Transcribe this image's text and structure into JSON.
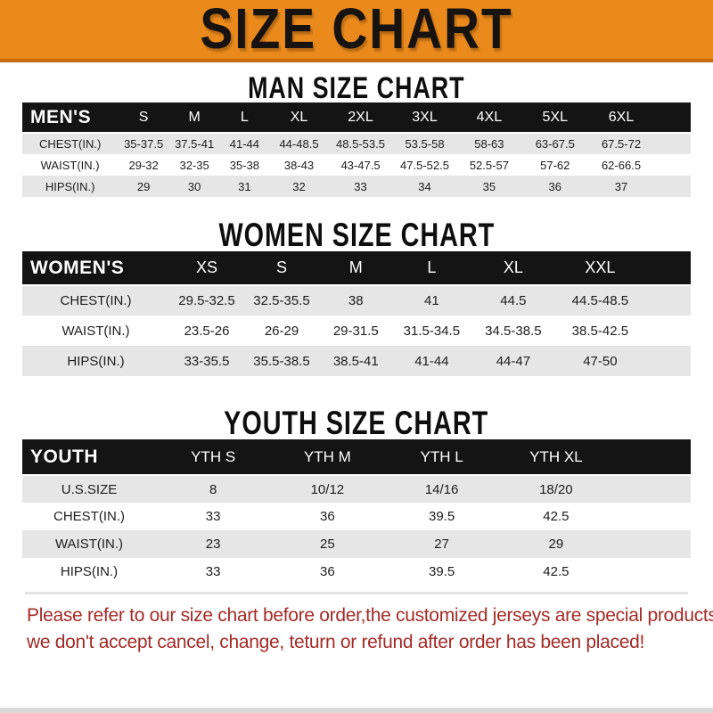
{
  "banner": {
    "title": "SIZE CHART"
  },
  "sections": [
    {
      "heading": "MAN SIZE CHART",
      "table": {
        "label": "MEN'S",
        "columns": [
          "S",
          "M",
          "L",
          "XL",
          "2XL",
          "3XL",
          "4XL",
          "5XL",
          "6XL"
        ],
        "rows": [
          {
            "label": "CHEST(IN.)",
            "values": [
              "35-37.5",
              "37.5-41",
              "41-44",
              "44-48.5",
              "48.5-53.5",
              "53.5-58",
              "58-63",
              "63-67.5",
              "67.5-72"
            ]
          },
          {
            "label": "WAIST(IN.)",
            "values": [
              "29-32",
              "32-35",
              "35-38",
              "38-43",
              "43-47.5",
              "47.5-52.5",
              "52.5-57",
              "57-62",
              "62-66.5"
            ]
          },
          {
            "label": "HIPS(IN.)",
            "values": [
              "29",
              "30",
              "31",
              "32",
              "33",
              "34",
              "35",
              "36",
              "37"
            ]
          }
        ]
      }
    },
    {
      "heading": "WOMEN SIZE CHART",
      "table": {
        "label": "WOMEN'S",
        "columns": [
          "XS",
          "S",
          "M",
          "L",
          "XL",
          "XXL"
        ],
        "rows": [
          {
            "label": "CHEST(IN.)",
            "values": [
              "29.5-32.5",
              "32.5-35.5",
              "38",
              "41",
              "44.5",
              "44.5-48.5"
            ]
          },
          {
            "label": "WAIST(IN.)",
            "values": [
              "23.5-26",
              "26-29",
              "29-31.5",
              "31.5-34.5",
              "34.5-38.5",
              "38.5-42.5"
            ]
          },
          {
            "label": "HIPS(IN.)",
            "values": [
              "33-35.5",
              "35.5-38.5",
              "38.5-41",
              "41-44",
              "44-47",
              "47-50"
            ]
          }
        ]
      }
    },
    {
      "heading": "YOUTH SIZE CHART",
      "table": {
        "label": "YOUTH",
        "columns": [
          "YTH S",
          "YTH M",
          "YTH L",
          "YTH XL"
        ],
        "rows": [
          {
            "label": "U.S.SIZE",
            "values": [
              "8",
              "10/12",
              "14/16",
              "18/20"
            ]
          },
          {
            "label": "CHEST(IN.)",
            "values": [
              "33",
              "36",
              "39.5",
              "42.5"
            ]
          },
          {
            "label": "WAIST(IN.)",
            "values": [
              "23",
              "25",
              "27",
              "29"
            ]
          },
          {
            "label": "HIPS(IN.)",
            "values": [
              "33",
              "36",
              "39.5",
              "42.5"
            ]
          }
        ]
      }
    }
  ],
  "note": {
    "line1": "Please refer to our size chart before order,the customized jerseys are special products,",
    "line2": "we don't accept cancel, change, teturn or refund after order has been placed!"
  },
  "colors": {
    "banner_orange": "#EA8A1C",
    "banner_edge": "#C9690D",
    "header_black": "#141414",
    "row_gray": "#E6E6E6",
    "note_red": "#A32B27"
  }
}
